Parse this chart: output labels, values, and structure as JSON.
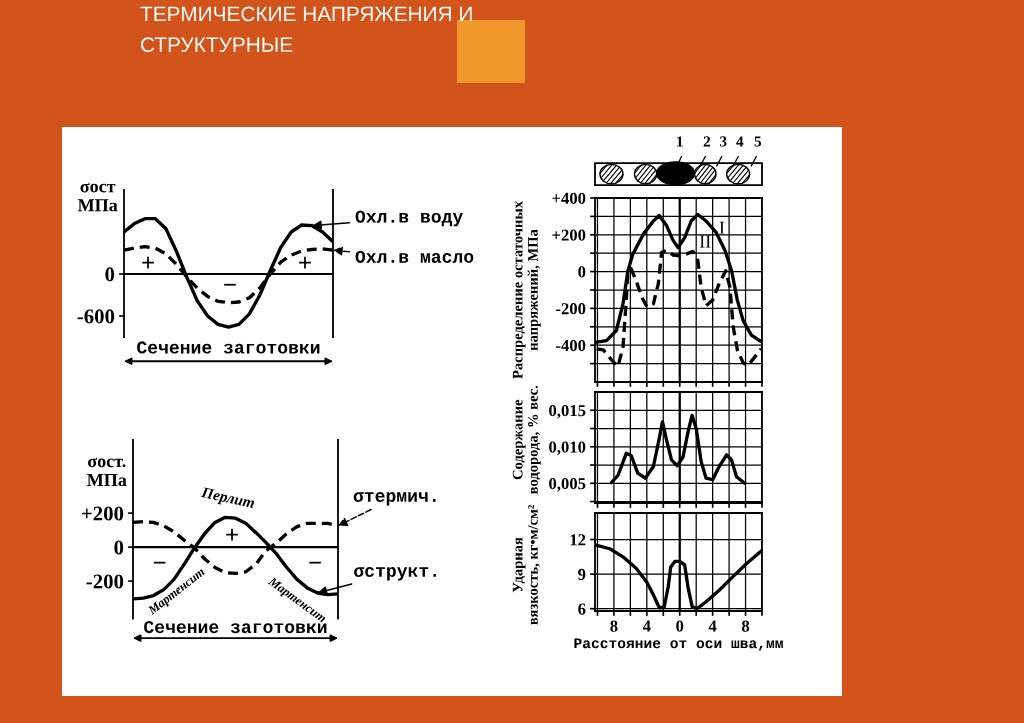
{
  "chart_data": [
    {
      "type": "line",
      "title": "ТЕРМИЧЕСКИЕ НАПРЯЖЕНИЯ И\nСТРУКТУРНЫЕ",
      "ylabel": "σост\nМПа",
      "xlabel": "Сечение заготовки",
      "categories": [
        null,
        null,
        null,
        null,
        null,
        null,
        null,
        null,
        null,
        null,
        null,
        null,
        null,
        null,
        null,
        null,
        null,
        null,
        null,
        null,
        null
      ],
      "series": [
        {
          "name": "Охл.в воду",
          "color": "#000000",
          "line_style": "solid",
          "values": [
            600,
            720,
            790,
            790,
            650,
            330,
            -40,
            -380,
            -600,
            -720,
            -760,
            -720,
            -570,
            -300,
            50,
            380,
            600,
            700,
            690,
            600,
            460
          ]
        },
        {
          "name": "Охл.в масло",
          "color": "#000000",
          "line_style": "dashed",
          "values": [
            340,
            370,
            390,
            370,
            290,
            140,
            -40,
            -200,
            -320,
            -390,
            -410,
            -400,
            -340,
            -200,
            0,
            170,
            270,
            330,
            350,
            360,
            340
          ]
        }
      ],
      "ylim": [
        -900,
        1200
      ],
      "yticks": [
        0,
        -600
      ],
      "legend": "right",
      "ref_lines": [
        {
          "axis": "y",
          "value": 0,
          "color": "#000000"
        }
      ],
      "annotations": [
        "+",
        "−",
        "+"
      ]
    },
    {
      "type": "line",
      "ylabel": "σост.\nМПа",
      "xlabel": "Сечение заготовки",
      "categories": [
        null,
        null,
        null,
        null,
        null,
        null,
        null,
        null,
        null,
        null,
        null,
        null,
        null,
        null,
        null,
        null,
        null,
        null,
        null,
        null,
        null
      ],
      "series": [
        {
          "name": "σтермич.",
          "color": "#000000",
          "line_style": "dashed",
          "values": [
            145,
            150,
            145,
            125,
            90,
            40,
            -5,
            -70,
            -120,
            -150,
            -155,
            -145,
            -100,
            -20,
            25,
            80,
            120,
            140,
            140,
            140,
            125
          ]
        },
        {
          "name": "σструкт.",
          "color": "#000000",
          "line_style": "solid",
          "values": [
            -305,
            -300,
            -285,
            -250,
            -190,
            -100,
            -5,
            80,
            145,
            175,
            170,
            140,
            85,
            25,
            -40,
            -120,
            -190,
            -240,
            -270,
            -280,
            -275
          ]
        }
      ],
      "ylim": [
        -420,
        630
      ],
      "yticks": [
        {
          "value": 200,
          "label": "+200"
        },
        0,
        -200
      ],
      "legend": "right",
      "ref_lines": [
        {
          "axis": "y",
          "value": 0,
          "color": "#000000"
        }
      ],
      "annotations": [
        "Перлит",
        "+",
        "−",
        "−",
        "Мартенсит",
        "Мартенсит"
      ]
    },
    {
      "type": "line",
      "ylabel": "Распределение остаточных\nнапряжений, МПа",
      "series": [
        {
          "name": "I",
          "color": "#000000",
          "line_style": "solid",
          "x": [
            -10.3,
            -8.9,
            -7.7,
            -6.9,
            -6.3,
            -5.7,
            -4.4,
            -3.2,
            -2.5,
            -1.6,
            -0.8,
            -0.2,
            0.6,
            1.4,
            2.2,
            3.2,
            4.4,
            5.5,
            6.3,
            7.0,
            7.7,
            8.7,
            9.9
          ],
          "values": [
            -385,
            -375,
            -320,
            -175,
            5,
            95,
            205,
            275,
            305,
            250,
            170,
            130,
            185,
            275,
            310,
            275,
            215,
            115,
            5,
            -155,
            -265,
            -345,
            -380
          ]
        },
        {
          "name": "II",
          "color": "#000000",
          "line_style": "dashed",
          "x": [
            -10.1,
            -9.3,
            -8.3,
            -7.5,
            -6.9,
            -6.5,
            -6.3,
            -5.9,
            -5.3,
            -4.6,
            -4.0,
            -3.2,
            -2.6,
            -2.2,
            -1.6,
            -0.8,
            0,
            0.8,
            1.6,
            2.2,
            2.6,
            3.2,
            4.0,
            4.8,
            5.6,
            6.1,
            6.5,
            7.0,
            7.7,
            8.3,
            9.1,
            9.9
          ],
          "values": [
            -420,
            -425,
            -480,
            -515,
            -410,
            -155,
            5,
            15,
            -50,
            -140,
            -190,
            -175,
            -65,
            105,
            115,
            90,
            85,
            95,
            110,
            60,
            -85,
            -185,
            -155,
            -65,
            5,
            -85,
            -300,
            -425,
            -495,
            -510,
            -465,
            -420
          ]
        }
      ],
      "xlim": [
        -10.3,
        10
      ],
      "xticks": [
        -10,
        -8,
        -6,
        -4,
        -2,
        0,
        2,
        4,
        6,
        8,
        10
      ],
      "ylim": [
        -600,
        400
      ],
      "yticks": [
        {
          "value": 400,
          "label": "+400"
        },
        {
          "value": 300,
          "label": null
        },
        {
          "value": 200,
          "label": "+200"
        },
        {
          "value": 100,
          "label": null
        },
        0,
        {
          "value": -100,
          "label": null
        },
        -200,
        {
          "value": -300,
          "label": null
        },
        -400,
        {
          "value": -500,
          "label": null
        }
      ],
      "grid": true,
      "tick_labels": "y",
      "ref_lines": [
        {
          "axis": "x",
          "value": 0,
          "color": "#000000"
        }
      ],
      "annotations": [
        "1",
        "2",
        "3",
        "4",
        "5"
      ]
    },
    {
      "type": "line",
      "ylabel": "Содержание\nводорода, % вес.",
      "series": [
        {
          "color": "#000000",
          "line_style": "solid",
          "x": [
            -8.3,
            -7.5,
            -6.5,
            -5.9,
            -5.1,
            -4.2,
            -3.2,
            -2.5,
            -2.1,
            -1.6,
            -1.0,
            -0.3,
            0.4,
            1.0,
            1.5,
            2.0,
            2.6,
            3.2,
            4.0,
            4.8,
            5.7,
            6.3,
            6.9,
            7.9
          ],
          "values": [
            0.0051,
            0.0061,
            0.0091,
            0.0088,
            0.0064,
            0.0057,
            0.0073,
            0.0111,
            0.0134,
            0.0109,
            0.0082,
            0.0074,
            0.0086,
            0.012,
            0.0143,
            0.0125,
            0.008,
            0.0057,
            0.0055,
            0.0073,
            0.0089,
            0.0082,
            0.0059,
            0.005
          ]
        }
      ],
      "xlim": [
        -10.3,
        10
      ],
      "xticks": [
        -10,
        -8,
        -6,
        -4,
        -2,
        0,
        2,
        4,
        6,
        8,
        10
      ],
      "ylim": [
        0.0023,
        0.0175
      ],
      "yticks": [
        {
          "value": 0.015,
          "label": "0,015"
        },
        {
          "value": 0.0125,
          "label": null
        },
        {
          "value": 0.01,
          "label": "0,010"
        },
        {
          "value": 0.0075,
          "label": null
        },
        {
          "value": 0.005,
          "label": "0,005"
        },
        {
          "value": 0.0025,
          "label": null
        }
      ],
      "grid": true,
      "tick_labels": "y",
      "ref_lines": [
        {
          "axis": "x",
          "value": 0,
          "color": "#000000"
        }
      ]
    },
    {
      "type": "line",
      "ylabel": "Ударная\nвязкость, кг•м/см²",
      "xlabel": "Расстояние от оси шва,мм",
      "series": [
        {
          "color": "#000000",
          "line_style": "solid",
          "x": [
            -10.1,
            -8.5,
            -6.9,
            -5.3,
            -4.0,
            -3.2,
            -2.5,
            -1.9,
            -1.4,
            -1.1,
            -0.6,
            0,
            0.6,
            1.0,
            1.5,
            2.1,
            3.2,
            4.8,
            6.5,
            8.1,
            9.9
          ],
          "values": [
            11.5,
            11.2,
            10.5,
            9.5,
            8.3,
            7.2,
            6.1,
            6.1,
            7.9,
            9.6,
            10.1,
            10.1,
            9.8,
            7.9,
            6.2,
            6.0,
            6.6,
            7.6,
            8.8,
            9.9,
            11.0
          ]
        }
      ],
      "xlim": [
        -10.3,
        10
      ],
      "xticks": [
        {
          "value": -10,
          "label": null
        },
        {
          "value": -8,
          "label": "8"
        },
        {
          "value": -6,
          "label": null
        },
        {
          "value": -4,
          "label": "4"
        },
        {
          "value": -2,
          "label": null
        },
        0,
        {
          "value": 2,
          "label": null
        },
        4,
        {
          "value": 6,
          "label": null
        },
        8,
        {
          "value": 10,
          "label": null
        }
      ],
      "ylim": [
        5.8,
        14.3
      ],
      "yticks": [
        12,
        9,
        6
      ],
      "grid": true,
      "ref_lines": [
        {
          "axis": "x",
          "value": 0,
          "color": "#000000"
        }
      ]
    }
  ]
}
